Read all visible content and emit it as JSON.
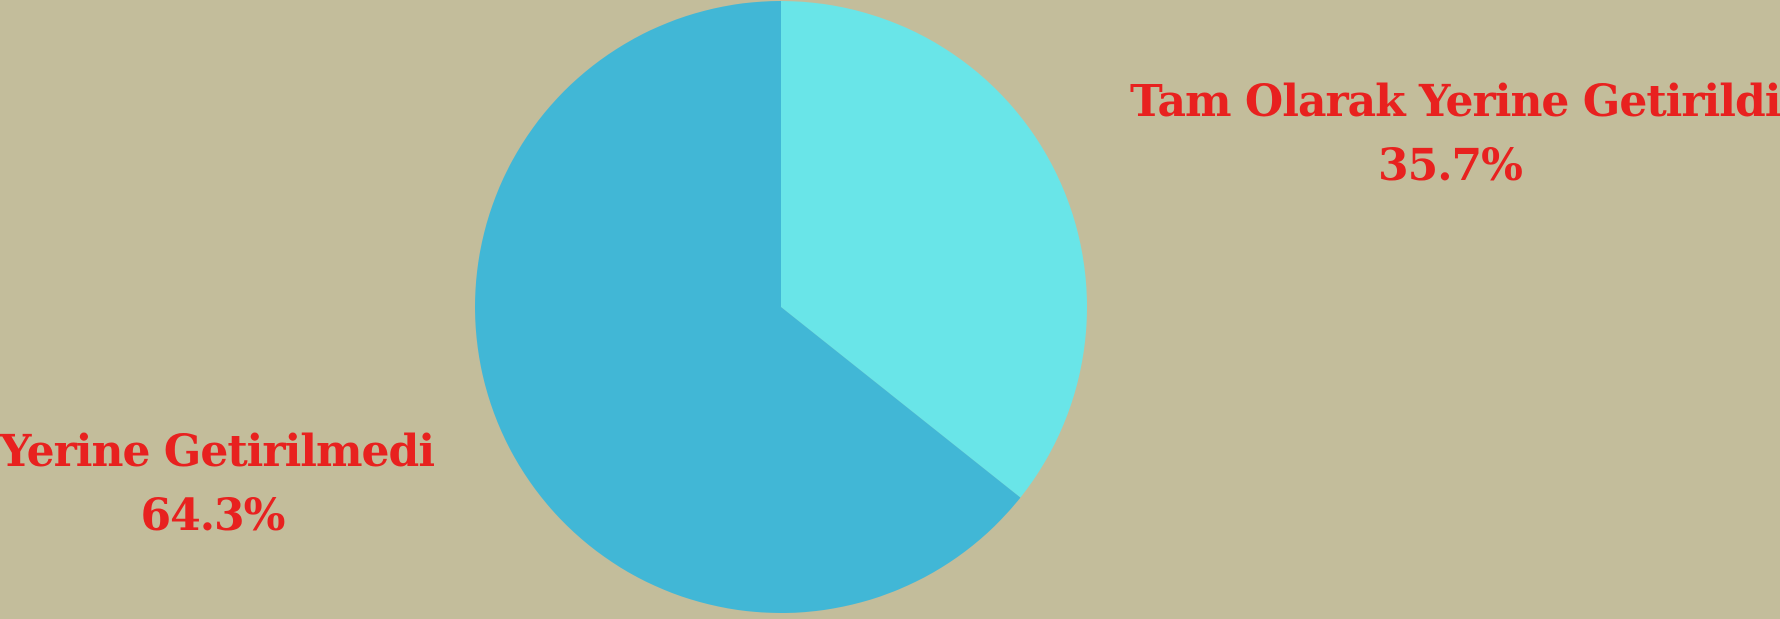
{
  "chart_data": {
    "type": "pie",
    "title": "",
    "slices": [
      {
        "label": "Tam Olarak Yerine Getirildi",
        "value": 35.7,
        "display": "35.7%",
        "color": "#69e5e8"
      },
      {
        "label": "Yerine Getirilmedi",
        "value": 64.3,
        "display": "64.3%",
        "color": "#41b7d6"
      }
    ],
    "start_angle": "top",
    "direction": "clockwise",
    "legend": "none"
  },
  "colors": {
    "background": "#c3bd9b",
    "label_text": "#e8211f"
  }
}
